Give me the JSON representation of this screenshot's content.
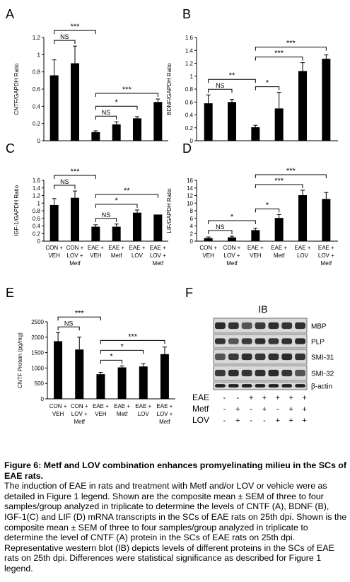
{
  "chart_data": [
    {
      "panel": "A",
      "type": "bar",
      "ylabel": "CNTF/GAPDH Ratio",
      "ylim": [
        0,
        1.2
      ],
      "yticks": [
        "0",
        "0.2",
        "0.4",
        "0.6",
        "0.8",
        "1",
        "1.2"
      ],
      "ytick_values": [
        0,
        0.2,
        0.4,
        0.6,
        0.8,
        1,
        1.2
      ],
      "values": [
        0.76,
        0.9,
        0.1,
        0.19,
        0.26,
        0.45
      ],
      "errors": [
        0.18,
        0.2,
        0.015,
        0.03,
        0.02,
        0.035
      ],
      "brackets": [
        {
          "i": 0,
          "j": 2,
          "label": "***"
        },
        {
          "i": 0,
          "j": 1,
          "label": "NS"
        },
        {
          "i": 2,
          "j": 5,
          "label": "***"
        },
        {
          "i": 2,
          "j": 4,
          "label": "*"
        },
        {
          "i": 2,
          "j": 3,
          "label": "NS"
        }
      ]
    },
    {
      "panel": "B",
      "type": "bar",
      "ylabel": "BDNF/GAPDH Ratio",
      "ylim": [
        0,
        1.6
      ],
      "yticks": [
        "0",
        "0.2",
        "0.4",
        "0.6",
        "0.8",
        "1",
        "1.2",
        "1.4",
        "1.6"
      ],
      "ytick_values": [
        0,
        0.2,
        0.4,
        0.6,
        0.8,
        1,
        1.2,
        1.4,
        1.6
      ],
      "values": [
        0.58,
        0.6,
        0.21,
        0.5,
        1.08,
        1.27
      ],
      "errors": [
        0.13,
        0.04,
        0.03,
        0.25,
        0.13,
        0.06
      ],
      "brackets": [
        {
          "i": 0,
          "j": 2,
          "label": "**"
        },
        {
          "i": 0,
          "j": 1,
          "label": "NS"
        },
        {
          "i": 2,
          "j": 5,
          "label": "***"
        },
        {
          "i": 2,
          "j": 4,
          "label": "***"
        },
        {
          "i": 2,
          "j": 3,
          "label": "*"
        }
      ]
    },
    {
      "panel": "C",
      "type": "bar",
      "ylabel": "IGF-1/GAPDH Ratio",
      "ylim": [
        0,
        1.6
      ],
      "yticks": [
        "0",
        "0.2",
        "0.4",
        "0.6",
        "0.8",
        "1",
        "1.2",
        "1.4",
        "1.6"
      ],
      "ytick_values": [
        0,
        0.2,
        0.4,
        0.6,
        0.8,
        1,
        1.2,
        1.4,
        1.6
      ],
      "values": [
        0.95,
        1.14,
        0.38,
        0.38,
        0.75,
        0.7
      ],
      "errors": [
        0.17,
        0.18,
        0.05,
        0.07,
        0.07,
        0.0
      ],
      "brackets": [
        {
          "i": 0,
          "j": 2,
          "label": "***"
        },
        {
          "i": 0,
          "j": 1,
          "label": "NS"
        },
        {
          "i": 2,
          "j": 5,
          "label": "**"
        },
        {
          "i": 2,
          "j": 4,
          "label": "*"
        },
        {
          "i": 2,
          "j": 3,
          "label": "NS"
        }
      ]
    },
    {
      "panel": "D",
      "type": "bar",
      "ylabel": "LIF/GAPDH Ratio",
      "ylim": [
        0,
        16
      ],
      "yticks": [
        "0",
        "2",
        "4",
        "6",
        "8",
        "10",
        "12",
        "14",
        "16"
      ],
      "ytick_values": [
        0,
        2,
        4,
        6,
        8,
        10,
        12,
        14,
        16
      ],
      "values": [
        0.8,
        1.0,
        2.9,
        6.1,
        12.1,
        11.1
      ],
      "errors": [
        0.3,
        0.3,
        0.5,
        0.9,
        1.3,
        1.7
      ],
      "brackets": [
        {
          "i": 0,
          "j": 2,
          "label": "*"
        },
        {
          "i": 0,
          "j": 1,
          "label": "NS"
        },
        {
          "i": 2,
          "j": 5,
          "label": "***"
        },
        {
          "i": 2,
          "j": 4,
          "label": "***"
        },
        {
          "i": 2,
          "j": 3,
          "label": "*"
        }
      ]
    },
    {
      "panel": "E",
      "type": "bar",
      "ylabel": "CNTF Protein (pg/mg)",
      "ylim": [
        0,
        2500
      ],
      "yticks": [
        "0",
        "500",
        "1000",
        "1500",
        "2000",
        "2500"
      ],
      "ytick_values": [
        0,
        500,
        1000,
        1500,
        2000,
        2500
      ],
      "values": [
        1870,
        1600,
        800,
        1020,
        1050,
        1450
      ],
      "errors": [
        280,
        400,
        60,
        50,
        90,
        230
      ],
      "brackets": [
        {
          "i": 0,
          "j": 2,
          "label": "***"
        },
        {
          "i": 0,
          "j": 1,
          "label": "NS"
        },
        {
          "i": 2,
          "j": 5,
          "label": "***"
        },
        {
          "i": 2,
          "j": 4,
          "label": "*"
        },
        {
          "i": 2,
          "j": 3,
          "label": "*"
        }
      ]
    }
  ],
  "categories": [
    [
      "CON +",
      "VEH"
    ],
    [
      "CON +",
      "LOV +",
      "Metf"
    ],
    [
      "EAE +",
      "VEH"
    ],
    [
      "EAE +",
      "Metf"
    ],
    [
      "EAE +",
      "LOV"
    ],
    [
      "EAE +",
      "LOV +",
      "Metf"
    ]
  ],
  "western_blot": {
    "panel": "F",
    "title": "IB",
    "proteins": [
      "MBP",
      "PLP",
      "SMI-31",
      "SMI-32",
      "β-actin"
    ],
    "conditions": [
      {
        "label": "EAE",
        "marks": [
          "-",
          "-",
          "+",
          "+",
          "+",
          "+",
          "+"
        ]
      },
      {
        "label": "Metf",
        "marks": [
          "-",
          "+",
          "-",
          "+",
          "-",
          "+",
          "+"
        ]
      },
      {
        "label": "LOV",
        "marks": [
          "-",
          "+",
          "-",
          "-",
          "+",
          "+",
          "+"
        ]
      }
    ]
  },
  "caption": {
    "title": "Figure 6: Metf and LOV combination enhances promyelinating milieu in the SCs of EAE rats.",
    "body": "The induction of EAE in rats and treatment with Metf and/or LOV or vehicle were as detailed in Figure 1 legend. Shown are the composite mean ± SEM of three to four samples/group analyzed in triplicate to determine the levels of CNTF (A), BDNF (B), IGF-1(C) and LIF (D) mRNA transcripts in the SCs of EAE rats on 25th dpi. Shown is the composite mean ± SEM of three to four samples/group analyzed in triplicate to determine the level of CNTF (A) protein in the SCs of EAE rats on 25th dpi. Representative western blot (IB) depicts levels of different proteins in the SCs of EAE rats on 25th dpi. Differences were statistical significance as described for Figure 1 legend."
  }
}
